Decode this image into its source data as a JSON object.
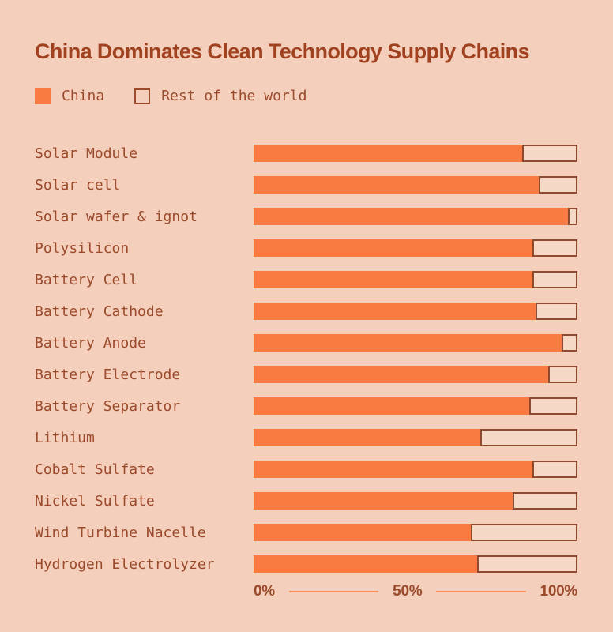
{
  "title": "China Dominates Clean Technology Supply Chains",
  "legend": [
    {
      "label": "China",
      "swatch": "filled-square"
    },
    {
      "label": "Rest of the world",
      "swatch": "outlined-square"
    }
  ],
  "colors": {
    "bg_color": "#f3cfbc",
    "bar_color": "#f97b41",
    "track_color": "#f6d8c6",
    "border_color": "#8e4a2e",
    "title_color": "#a04220",
    "text_color": "#9c4a2c"
  },
  "chart_data": {
    "type": "bar",
    "orientation": "horizontal",
    "title": "China Dominates Clean Technology Supply Chains",
    "unit": "%",
    "xlim": [
      0,
      100
    ],
    "x_ticks": [
      "0%",
      "50%",
      "100%"
    ],
    "grid": false,
    "legend_position": "top-left",
    "categories": [
      "Solar Module",
      "Solar cell",
      "Solar wafer & ignot",
      "Polysilicon",
      "Battery Cell",
      "Battery Cathode",
      "Battery Anode",
      "Battery Electrode",
      "Battery Separator",
      "Lithium",
      "Cobalt Sulfate",
      "Nickel Sulfate",
      "Wind Turbine Nacelle",
      "Hydrogen Electrolyzer"
    ],
    "series": [
      {
        "name": "China",
        "values": [
          83,
          88,
          97,
          86,
          86,
          87,
          95,
          91,
          85,
          70,
          86,
          80,
          67,
          69
        ]
      },
      {
        "name": "Rest of the world",
        "values": [
          17,
          12,
          3,
          14,
          14,
          13,
          5,
          9,
          15,
          30,
          14,
          20,
          33,
          31
        ]
      }
    ]
  }
}
